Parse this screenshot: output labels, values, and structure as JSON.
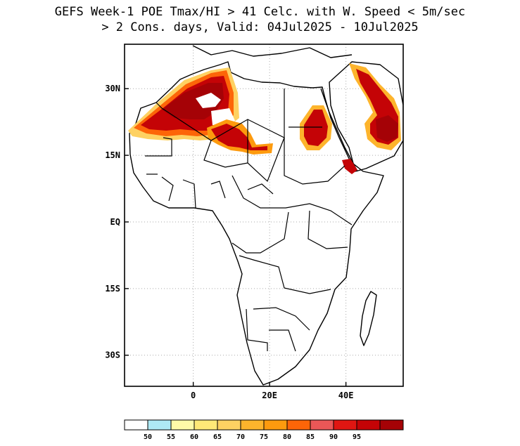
{
  "title": {
    "line1": "GEFS Week-1 POE Tmax/HI > 41 Celc. with W. Speed < 5m/sec",
    "line2": "> 2 Cons. days, Valid: 04Jul2025 - 10Jul2025"
  },
  "map": {
    "region": "Africa",
    "lon_range": [
      -18,
      55
    ],
    "lat_range": [
      -37,
      40
    ],
    "lat_ticks": [
      {
        "value": 30,
        "label": "30N"
      },
      {
        "value": 15,
        "label": "15N"
      },
      {
        "value": 0,
        "label": "EQ"
      },
      {
        "value": -15,
        "label": "15S"
      },
      {
        "value": -30,
        "label": "30S"
      }
    ],
    "lon_ticks": [
      {
        "value": 0,
        "label": "0"
      },
      {
        "value": 20,
        "label": "20E"
      },
      {
        "value": 40,
        "label": "40E"
      }
    ],
    "gridlines": "dotted",
    "hotspots": [
      {
        "name": "Algeria-Mali-Mauritania",
        "level": 95
      },
      {
        "name": "Niger-Chad",
        "level": 90
      },
      {
        "name": "Sudan-Egypt",
        "level": 95
      },
      {
        "name": "Arabian Peninsula",
        "level": 95
      },
      {
        "name": "Eritrea coast",
        "level": 95
      }
    ]
  },
  "colorbar": {
    "colors": [
      "#ffffff",
      "#aee9f5",
      "#fffaa8",
      "#ffe877",
      "#fed162",
      "#fdb42c",
      "#fd9a0e",
      "#fd6508",
      "#ea5757",
      "#e01612",
      "#c40306",
      "#a50206"
    ],
    "labels": [
      "50",
      "55",
      "60",
      "65",
      "70",
      "75",
      "80",
      "85",
      "90",
      "95"
    ]
  }
}
